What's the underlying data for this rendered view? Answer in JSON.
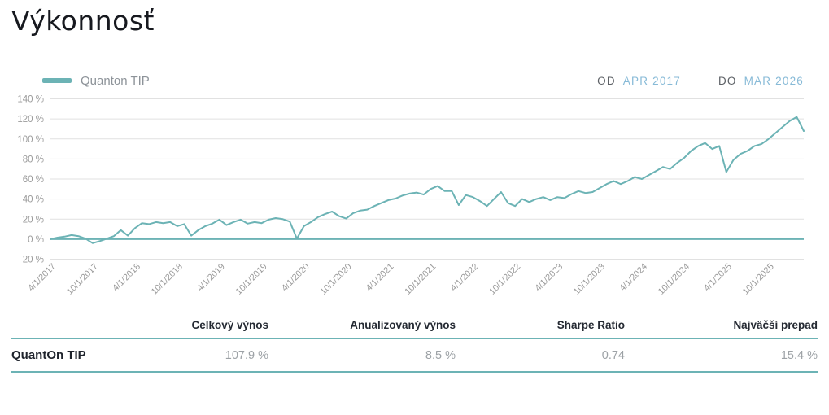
{
  "page": {
    "title": "Výkonnosť"
  },
  "chart": {
    "legend_label": "Quanton TIP",
    "range": {
      "od_label": "OD",
      "od_value": "APR 2017",
      "do_label": "DO",
      "do_value": "MAR 2026"
    }
  },
  "chart_data": {
    "type": "line",
    "title": "Výkonnosť",
    "legend_position": "top-left",
    "grid": "horizontal",
    "ylim": [
      -20,
      140
    ],
    "y_ticks": [
      140,
      120,
      100,
      80,
      60,
      40,
      20,
      0,
      -20
    ],
    "y_tick_suffix": " %",
    "zero_line": true,
    "x_tick_labels": [
      "4/1/2017",
      "10/1/2017",
      "4/1/2018",
      "10/1/2018",
      "4/1/2019",
      "10/1/2019",
      "4/1/2020",
      "10/1/2020",
      "4/1/2021",
      "10/1/2021",
      "4/1/2022",
      "10/1/2022",
      "4/1/2023",
      "10/1/2023",
      "4/1/2024",
      "10/1/2024",
      "4/1/2025",
      "10/1/2025"
    ],
    "x_tick_positions": [
      0,
      6,
      12,
      18,
      24,
      30,
      36,
      42,
      48,
      54,
      60,
      66,
      72,
      78,
      84,
      90,
      96,
      102
    ],
    "series": [
      {
        "name": "Quanton TIP",
        "color": "#6cb3b5",
        "unit": "%",
        "x": [
          "2017-04",
          "2017-05",
          "2017-06",
          "2017-07",
          "2017-08",
          "2017-09",
          "2017-10",
          "2017-11",
          "2017-12",
          "2018-01",
          "2018-02",
          "2018-03",
          "2018-04",
          "2018-05",
          "2018-06",
          "2018-07",
          "2018-08",
          "2018-09",
          "2018-10",
          "2018-11",
          "2018-12",
          "2019-01",
          "2019-02",
          "2019-03",
          "2019-04",
          "2019-05",
          "2019-06",
          "2019-07",
          "2019-08",
          "2019-09",
          "2019-10",
          "2019-11",
          "2019-12",
          "2020-01",
          "2020-02",
          "2020-03",
          "2020-04",
          "2020-05",
          "2020-06",
          "2020-07",
          "2020-08",
          "2020-09",
          "2020-10",
          "2020-11",
          "2020-12",
          "2021-01",
          "2021-02",
          "2021-03",
          "2021-04",
          "2021-05",
          "2021-06",
          "2021-07",
          "2021-08",
          "2021-09",
          "2021-10",
          "2021-11",
          "2021-12",
          "2022-01",
          "2022-02",
          "2022-03",
          "2022-04",
          "2022-05",
          "2022-06",
          "2022-07",
          "2022-08",
          "2022-09",
          "2022-10",
          "2022-11",
          "2022-12",
          "2023-01",
          "2023-02",
          "2023-03",
          "2023-04",
          "2023-05",
          "2023-06",
          "2023-07",
          "2023-08",
          "2023-09",
          "2023-10",
          "2023-11",
          "2023-12",
          "2024-01",
          "2024-02",
          "2024-03",
          "2024-04",
          "2024-05",
          "2024-06",
          "2024-07",
          "2024-08",
          "2024-09",
          "2024-10",
          "2024-11",
          "2024-12",
          "2025-01",
          "2025-02",
          "2025-03",
          "2025-04",
          "2025-05",
          "2025-06",
          "2025-07",
          "2025-08",
          "2025-09",
          "2025-10",
          "2025-11",
          "2025-12",
          "2026-01",
          "2026-02",
          "2026-03"
        ],
        "values": [
          0,
          1.5,
          2.5,
          4,
          3,
          0.5,
          -4,
          -2,
          0.5,
          3,
          9,
          3.5,
          11,
          16,
          15,
          17,
          16,
          17,
          13,
          15,
          3.5,
          9,
          13,
          15.5,
          19.5,
          14,
          17,
          19.5,
          15.5,
          17,
          16,
          19.5,
          21,
          20,
          17.5,
          0.5,
          13,
          17,
          22,
          25,
          27.5,
          23,
          20.5,
          26,
          28.5,
          29.5,
          33,
          36,
          39,
          40.5,
          43.5,
          45.5,
          46.5,
          44.5,
          50,
          53,
          48,
          48,
          34,
          44,
          42,
          38,
          33,
          40,
          47,
          36,
          33,
          40,
          37,
          40,
          42,
          39,
          42,
          41,
          45,
          48,
          46,
          47,
          51,
          55,
          58,
          55,
          58,
          62,
          60,
          64,
          68,
          72,
          70,
          76,
          81,
          88,
          93,
          96,
          90,
          93,
          67,
          79,
          85,
          88,
          93,
          95,
          100,
          106,
          112,
          118,
          122,
          107.9
        ]
      }
    ]
  },
  "table": {
    "headers": [
      "Celkový výnos",
      "Anualizovaný výnos",
      "Sharpe Ratio",
      "Najväčší prepad"
    ],
    "rows": [
      {
        "label": "QuantOn TIP",
        "values": [
          "107.9 %",
          "8.5 %",
          "0.74",
          "15.4 %"
        ]
      }
    ]
  },
  "colors": {
    "accent_teal": "#6cb3b5",
    "range_value_blue": "#87bad7",
    "grid_gray": "#e1e1e1",
    "axis_label_gray": "#9b9b9b"
  }
}
